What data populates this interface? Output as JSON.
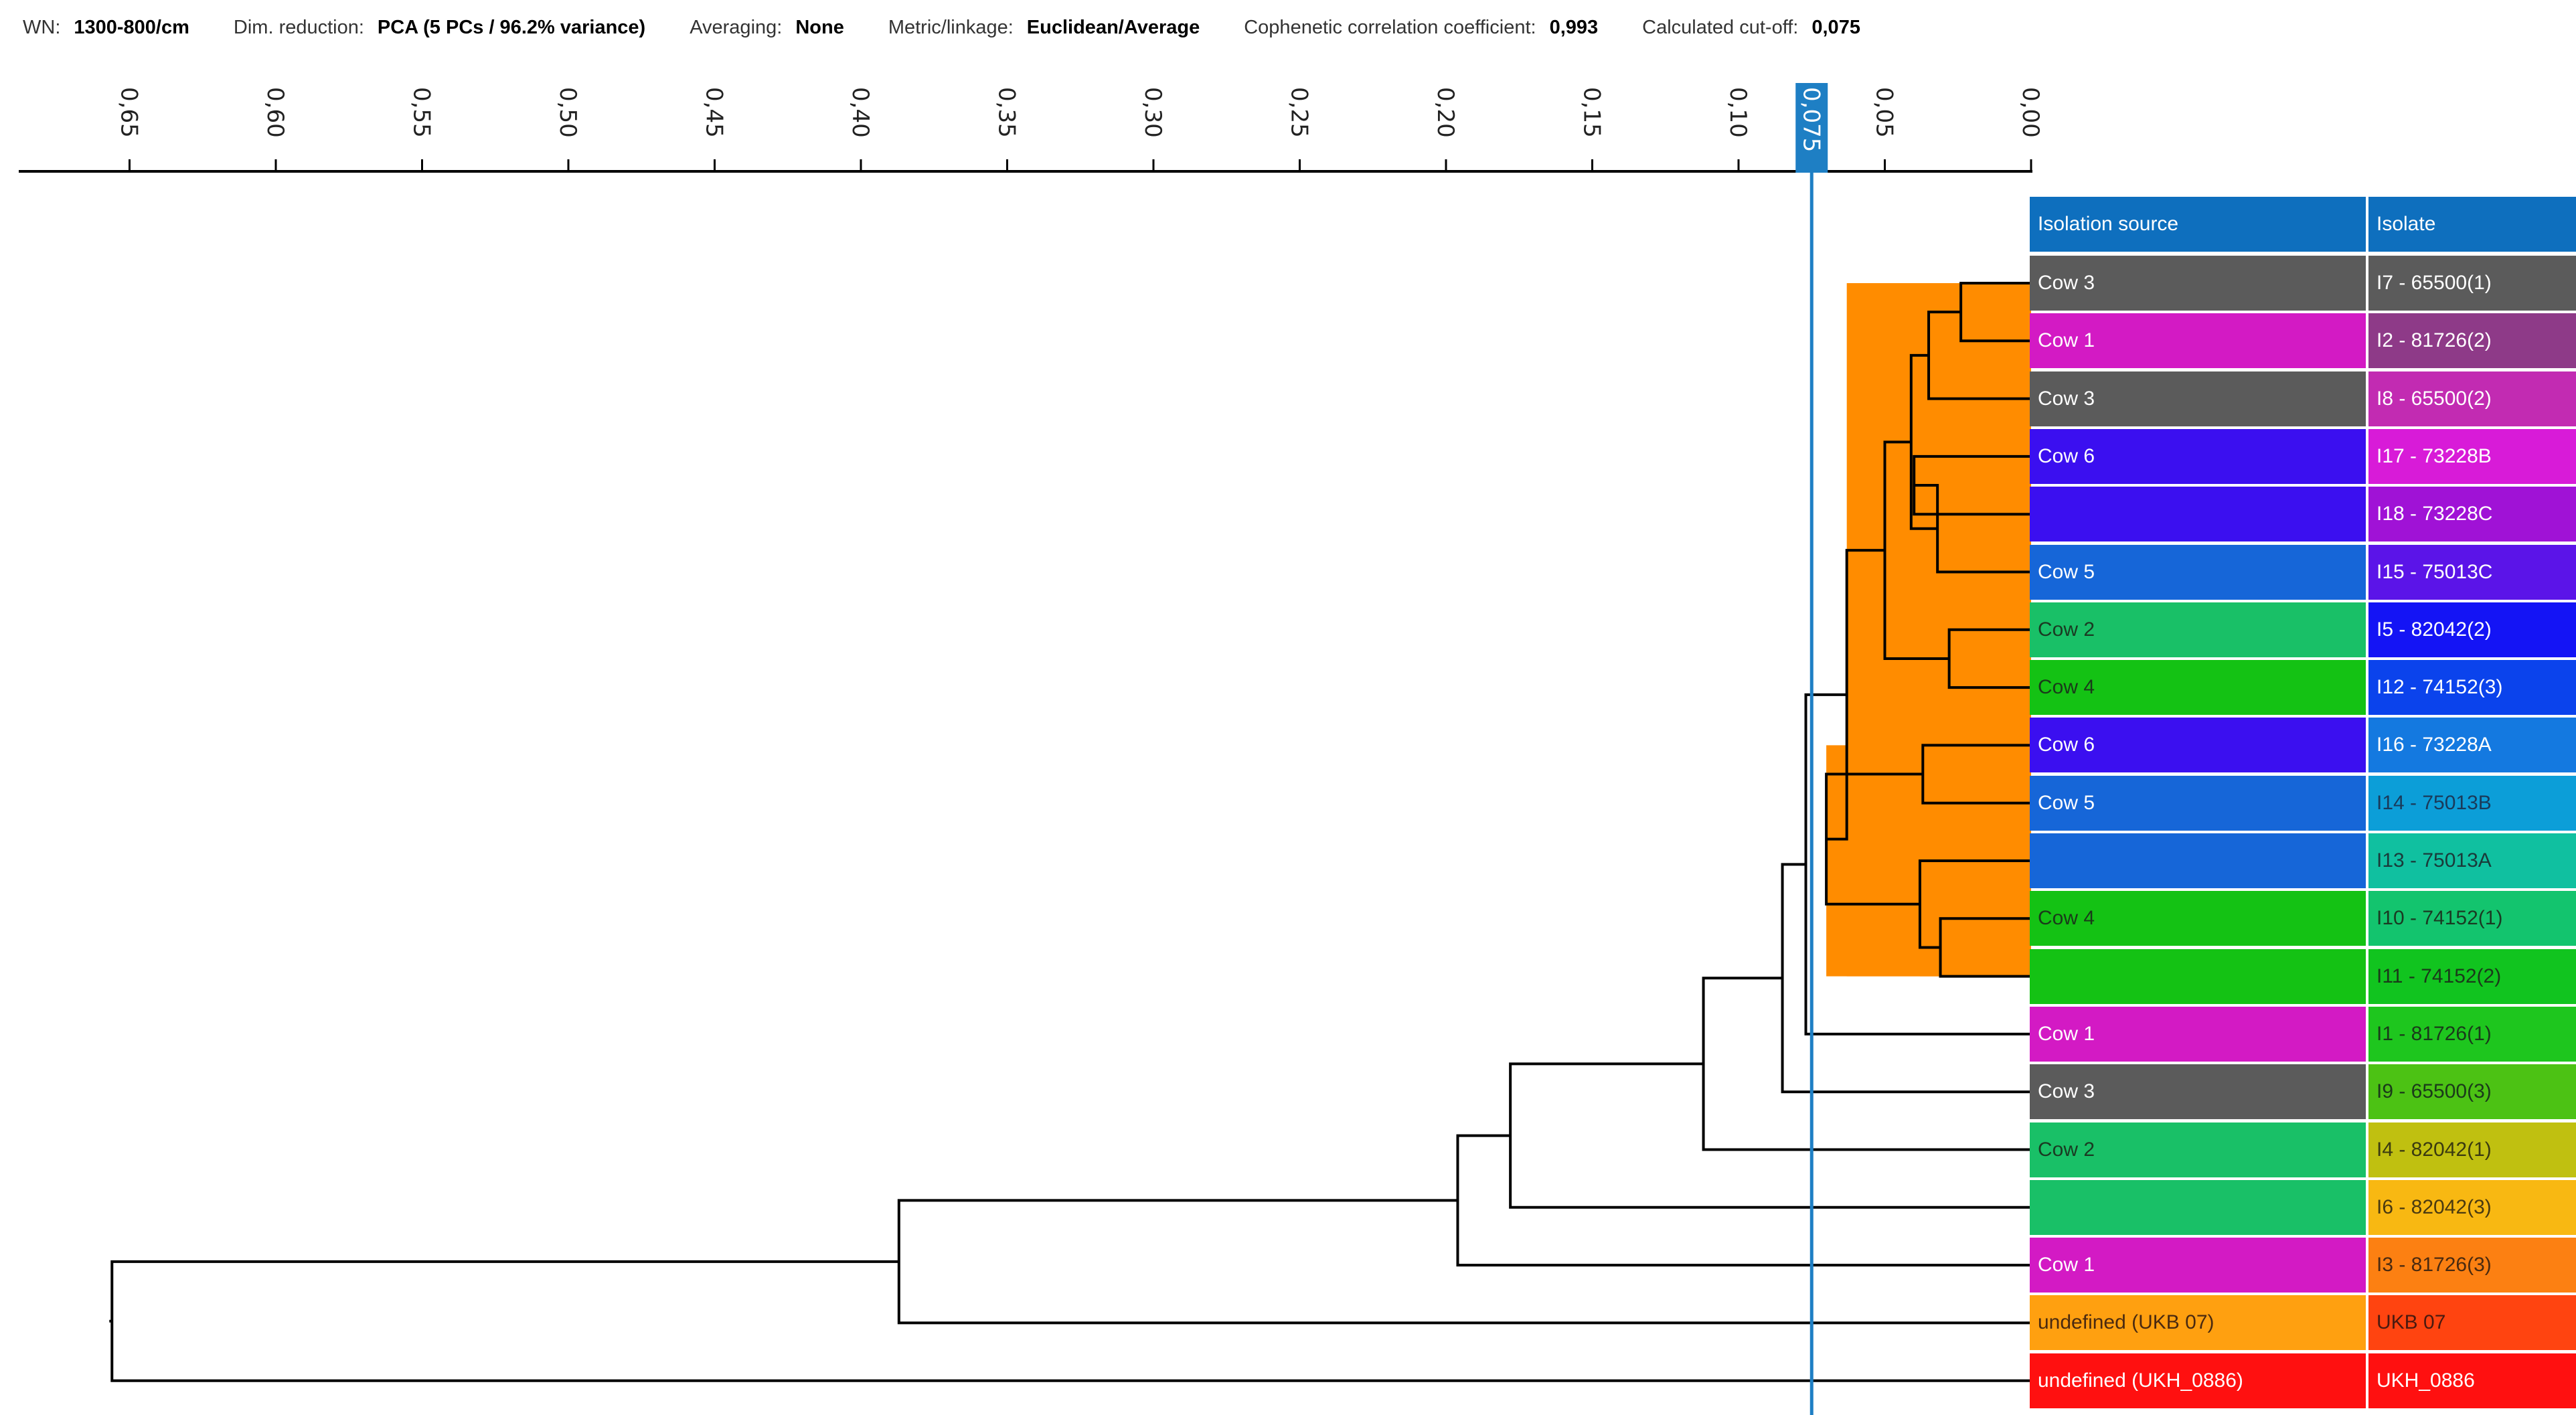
{
  "header": [
    {
      "label": "WN:",
      "value": "1300-800/cm"
    },
    {
      "label": "Dim. reduction:",
      "value": "PCA (5 PCs / 96.2% variance)"
    },
    {
      "label": "Averaging:",
      "value": "None"
    },
    {
      "label": "Metric/linkage:",
      "value": "Euclidean/Average"
    },
    {
      "label": "Cophenetic correlation coefficient:",
      "value": "0,993"
    },
    {
      "label": "Calculated cut-off:",
      "value": "0,075"
    }
  ],
  "table": {
    "header_color": "#0E6FBE",
    "columns": [
      "Isolation source",
      "Isolate"
    ],
    "rows": [
      {
        "source": "Cow 3",
        "src_color": "#5B5B5B",
        "src_text": "#ffffff",
        "isolate": "I7 - 65500(1)",
        "iso_color": "#5B5B5B",
        "iso_text": "#ffffff"
      },
      {
        "source": "Cow 1",
        "src_color": "#D31AC4",
        "src_text": "#ffffff",
        "isolate": "I2 - 81726(2)",
        "iso_color": "#8E3A88",
        "iso_text": "#ffffff"
      },
      {
        "source": "Cow 3",
        "src_color": "#5B5B5B",
        "src_text": "#ffffff",
        "isolate": "I8 - 65500(2)",
        "iso_color": "#C22BB2",
        "iso_text": "#ffffff"
      },
      {
        "source": "Cow 6",
        "src_color": "#3B0FF0",
        "src_text": "#ffffff",
        "isolate": "I17 - 73228B",
        "iso_color": "#D81BD8",
        "iso_text": "#ffffff"
      },
      {
        "source": "",
        "src_color": "#3B0FF0",
        "src_text": "#ffffff",
        "isolate": "I18 - 73228C",
        "iso_color": "#A012D6",
        "iso_text": "#ffffff"
      },
      {
        "source": "Cow 5",
        "src_color": "#1666D8",
        "src_text": "#ffffff",
        "isolate": "I15 - 75013C",
        "iso_color": "#5B14E8",
        "iso_text": "#ffffff"
      },
      {
        "source": "Cow 2",
        "src_color": "#19C067",
        "src_text": "#1a3a22",
        "isolate": "I5 - 82042(2)",
        "iso_color": "#1414F5",
        "iso_text": "#ffffff"
      },
      {
        "source": "Cow 4",
        "src_color": "#14C214",
        "src_text": "#1a3a1a",
        "isolate": "I12 - 74152(3)",
        "iso_color": "#0B43EC",
        "iso_text": "#ffffff"
      },
      {
        "source": "Cow 6",
        "src_color": "#3B0FF0",
        "src_text": "#ffffff",
        "isolate": "I16 - 73228A",
        "iso_color": "#1479E0",
        "iso_text": "#ffffff"
      },
      {
        "source": "Cow 5",
        "src_color": "#1666D8",
        "src_text": "#ffffff",
        "isolate": "I14 - 75013B",
        "iso_color": "#0C9ED8",
        "iso_text": "#1a3a5a"
      },
      {
        "source": "",
        "src_color": "#1666D8",
        "src_text": "#ffffff",
        "isolate": "I13 - 75013A",
        "iso_color": "#10C0A0",
        "iso_text": "#1a3a3a"
      },
      {
        "source": "Cow 4",
        "src_color": "#14C214",
        "src_text": "#1a3a1a",
        "isolate": "I10 - 74152(1)",
        "iso_color": "#13C46E",
        "iso_text": "#1a3a22"
      },
      {
        "source": "",
        "src_color": "#14C214",
        "src_text": "#1a3a1a",
        "isolate": "I11 - 74152(2)",
        "iso_color": "#11C41F",
        "iso_text": "#1a3a1a"
      },
      {
        "source": "Cow 1",
        "src_color": "#D31AC4",
        "src_text": "#ffffff",
        "isolate": "I1 - 81726(1)",
        "iso_color": "#1EC61E",
        "iso_text": "#1a3a1a"
      },
      {
        "source": "Cow 3",
        "src_color": "#5B5B5B",
        "src_text": "#ffffff",
        "isolate": "I9 - 65500(3)",
        "iso_color": "#4CC214",
        "iso_text": "#1a3a1a"
      },
      {
        "source": "Cow 2",
        "src_color": "#19C067",
        "src_text": "#1a3a22",
        "isolate": "I4 - 82042(1)",
        "iso_color": "#C0C010",
        "iso_text": "#3a3a10"
      },
      {
        "source": "",
        "src_color": "#19C067",
        "src_text": "#1a3a22",
        "isolate": "I6 - 82042(3)",
        "iso_color": "#F8B812",
        "iso_text": "#4a3a10"
      },
      {
        "source": "Cow 1",
        "src_color": "#D31AC4",
        "src_text": "#ffffff",
        "isolate": "I3 - 81726(3)",
        "iso_color": "#FC8012",
        "iso_text": "#4a2a10"
      },
      {
        "source": "undefined (UKB 07)",
        "src_color": "#FFA010",
        "src_text": "#4a2a10",
        "isolate": "UKB 07",
        "iso_color": "#FF4410",
        "iso_text": "#4a1a10"
      },
      {
        "source": "undefined (UKH_0886)",
        "src_color": "#FF1010",
        "src_text": "#ffffff",
        "isolate": "UKH_0886",
        "iso_color": "#FF1010",
        "iso_text": "#ffffff"
      }
    ]
  },
  "chart_data": {
    "type": "dendrogram",
    "axis": {
      "min": 0.0,
      "max": 0.69,
      "reversed": true,
      "ticks": [
        0.65,
        0.6,
        0.55,
        0.5,
        0.45,
        0.4,
        0.35,
        0.3,
        0.25,
        0.2,
        0.15,
        0.1,
        0.05,
        0.0
      ],
      "tick_labels": [
        "0,65",
        "0,60",
        "0,55",
        "0,50",
        "0,45",
        "0,40",
        "0,35",
        "0,30",
        "0,25",
        "0,20",
        "0,15",
        "0,10",
        "0,05",
        "0,00"
      ]
    },
    "cutoff": {
      "value": 0.075,
      "label": "0,075",
      "color": "#1E7FC4"
    },
    "cluster_color": "#FF8C00",
    "leaves": [
      "I7 - 65500(1)",
      "I2 - 81726(2)",
      "I8 - 65500(2)",
      "I17 - 73228B",
      "I18 - 73228C",
      "I15 - 75013C",
      "I5 - 82042(2)",
      "I12 - 74152(3)",
      "I16 - 73228A",
      "I14 - 75013B",
      "I13 - 75013A",
      "I10 - 74152(1)",
      "I11 - 74152(2)",
      "I1 - 81726(1)",
      "I9 - 65500(3)",
      "I4 - 82042(1)",
      "I6 - 82042(3)",
      "I3 - 81726(3)",
      "UKB 07",
      "UKH_0886"
    ],
    "merges": [
      {
        "a": 0,
        "b": 1,
        "h": 0.024
      },
      {
        "a": 20,
        "b": 2,
        "h": 0.035
      },
      {
        "a": 3,
        "b": 4,
        "h": 0.04
      },
      {
        "a": 22,
        "b": 5,
        "h": 0.032
      },
      {
        "a": 21,
        "b": 23,
        "h": 0.041
      },
      {
        "a": 6,
        "b": 7,
        "h": 0.028
      },
      {
        "a": 24,
        "b": 25,
        "h": 0.05
      },
      {
        "a": 8,
        "b": 9,
        "h": 0.037
      },
      {
        "a": 11,
        "b": 12,
        "h": 0.031
      },
      {
        "a": 10,
        "b": 28,
        "h": 0.038
      },
      {
        "a": 27,
        "b": 29,
        "h": 0.07
      },
      {
        "a": 26,
        "b": 30,
        "h": 0.063
      },
      {
        "a": 31,
        "b": 13,
        "h": 0.077
      },
      {
        "a": 32,
        "b": 14,
        "h": 0.085
      },
      {
        "a": 33,
        "b": 15,
        "h": 0.112
      },
      {
        "a": 16,
        "b": 34,
        "h": 0.178
      },
      {
        "a": 35,
        "b": 17,
        "h": 0.196
      },
      {
        "a": 36,
        "b": 18,
        "h": 0.387
      },
      {
        "a": 37,
        "b": 19,
        "h": 0.656
      }
    ],
    "cluster_merge_count": 12
  }
}
